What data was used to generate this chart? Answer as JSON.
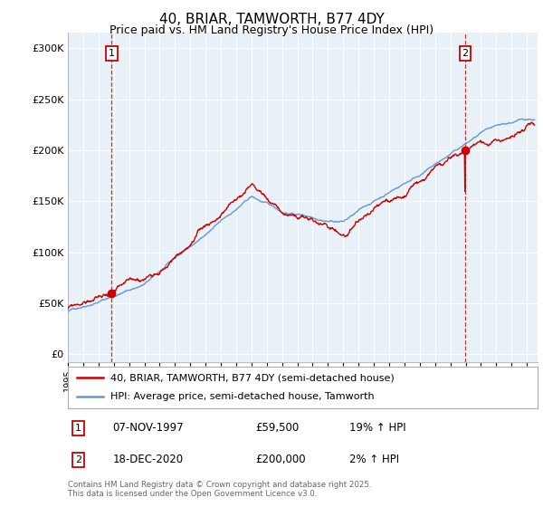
{
  "title": "40, BRIAR, TAMWORTH, B77 4DY",
  "subtitle": "Price paid vs. HM Land Registry's House Price Index (HPI)",
  "ylabel_ticks": [
    "£0",
    "£50K",
    "£100K",
    "£150K",
    "£200K",
    "£250K",
    "£300K"
  ],
  "ytick_values": [
    0,
    50000,
    100000,
    150000,
    200000,
    250000,
    300000
  ],
  "ylim": [
    -8000,
    315000
  ],
  "xlim_start": 1995.0,
  "xlim_end": 2025.7,
  "sale1_date": 1997.86,
  "sale1_price": 59500,
  "sale2_date": 2020.96,
  "sale2_price": 200000,
  "line1_color": "#cc0000",
  "line2_color": "#6699cc",
  "vline_color": "#cc0000",
  "chart_bg": "#e8f0f8",
  "legend_label1": "40, BRIAR, TAMWORTH, B77 4DY (semi-detached house)",
  "legend_label2": "HPI: Average price, semi-detached house, Tamworth",
  "footer": "Contains HM Land Registry data © Crown copyright and database right 2025.\nThis data is licensed under the Open Government Licence v3.0.",
  "bg_color": "#ffffff",
  "grid_color": "#ffffff",
  "title_fontsize": 11,
  "subtitle_fontsize": 9
}
